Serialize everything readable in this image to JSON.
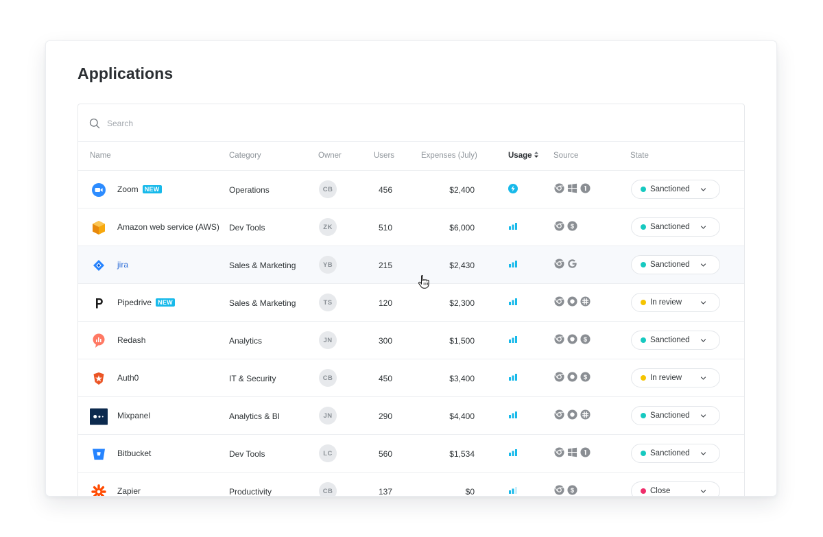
{
  "page": {
    "title": "Applications"
  },
  "search": {
    "placeholder": "Search",
    "value": ""
  },
  "columns": {
    "name": "Name",
    "category": "Category",
    "owner": "Owner",
    "users": "Users",
    "expenses": "Expenses (July)",
    "usage": "Usage",
    "source": "Source",
    "state": "State"
  },
  "colors": {
    "accent": "#17b9ea",
    "link": "#2f6fd8",
    "sanctioned": "#16c9c0",
    "in_review": "#f5c400",
    "close": "#ef2d6a"
  },
  "rows": [
    {
      "name": "Zoom",
      "badge": "NEW",
      "icon": "zoom-icon",
      "category": "Operations",
      "owner": "CB",
      "users": "456",
      "expenses": "$2,400",
      "usage": "bolt",
      "sources": [
        "chrome-icon",
        "windows-icon",
        "one-password-icon"
      ],
      "state": "Sanctioned",
      "state_color": "#16c9c0"
    },
    {
      "name": "Amazon web service (AWS)",
      "badge": "",
      "icon": "aws-icon",
      "category": "Dev Tools",
      "owner": "ZK",
      "users": "510",
      "expenses": "$6,000",
      "usage": "bars-3",
      "sources": [
        "chrome-icon",
        "dollar-icon"
      ],
      "state": "Sanctioned",
      "state_color": "#16c9c0"
    },
    {
      "name": "jira",
      "badge": "",
      "icon": "jira-icon",
      "category": "Sales & Marketing",
      "owner": "YB",
      "users": "215",
      "expenses": "$2,430",
      "usage": "bars-3",
      "sources": [
        "chrome-icon",
        "google-icon"
      ],
      "state": "Sanctioned",
      "state_color": "#16c9c0",
      "highlight": true,
      "link": true
    },
    {
      "name": "Pipedrive",
      "badge": "NEW",
      "icon": "pipedrive-icon",
      "category": "Sales & Marketing",
      "owner": "TS",
      "users": "120",
      "expenses": "$2,300",
      "usage": "bars-3",
      "sources": [
        "chrome-icon",
        "okta-icon",
        "slack-icon"
      ],
      "state": "In review",
      "state_color": "#f5c400"
    },
    {
      "name": "Redash",
      "badge": "",
      "icon": "redash-icon",
      "category": "Analytics",
      "owner": "JN",
      "users": "300",
      "expenses": "$1,500",
      "usage": "bars-3",
      "sources": [
        "chrome-icon",
        "okta-icon",
        "dollar-icon"
      ],
      "state": "Sanctioned",
      "state_color": "#16c9c0"
    },
    {
      "name": "Auth0",
      "badge": "",
      "icon": "auth0-icon",
      "category": "IT & Security",
      "owner": "CB",
      "users": "450",
      "expenses": "$3,400",
      "usage": "bars-3",
      "sources": [
        "chrome-icon",
        "okta-icon",
        "dollar-icon"
      ],
      "state": "In review",
      "state_color": "#f5c400"
    },
    {
      "name": "Mixpanel",
      "badge": "",
      "icon": "mixpanel-icon",
      "category": "Analytics & BI",
      "owner": "JN",
      "users": "290",
      "expenses": "$4,400",
      "usage": "bars-3",
      "sources": [
        "chrome-icon",
        "okta-icon",
        "slack-icon"
      ],
      "state": "Sanctioned",
      "state_color": "#16c9c0"
    },
    {
      "name": "Bitbucket",
      "badge": "",
      "icon": "bitbucket-icon",
      "category": "Dev Tools",
      "owner": "LC",
      "users": "560",
      "expenses": "$1,534",
      "usage": "bars-3",
      "sources": [
        "chrome-icon",
        "windows-icon",
        "one-password-icon"
      ],
      "state": "Sanctioned",
      "state_color": "#16c9c0"
    },
    {
      "name": "Zapier",
      "badge": "",
      "icon": "zapier-icon",
      "category": "Productivity",
      "owner": "CB",
      "users": "137",
      "expenses": "$0",
      "usage": "bars-2",
      "sources": [
        "chrome-icon",
        "dollar-icon"
      ],
      "state": "Close",
      "state_color": "#ef2d6a"
    }
  ]
}
